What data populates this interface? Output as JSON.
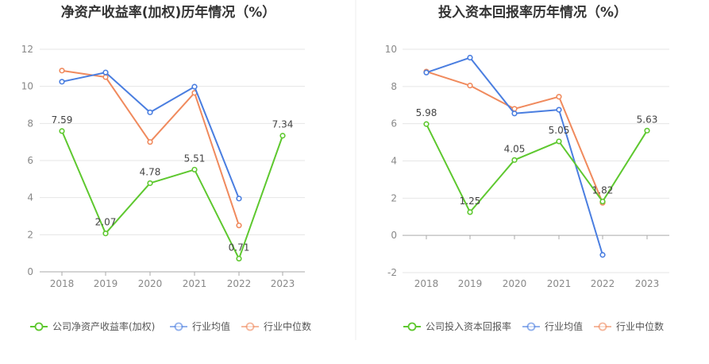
{
  "chart_data": [
    {
      "type": "line",
      "title": "净资产收益率(加权)历年情况（%）",
      "categories": [
        "2018",
        "2019",
        "2020",
        "2021",
        "2022",
        "2023"
      ],
      "ylim": [
        0,
        12
      ],
      "yticks": [
        0,
        2,
        4,
        6,
        8,
        10,
        12
      ],
      "grid": true,
      "legend_position": "bottom",
      "series": [
        {
          "name": "公司净资产收益率(加权)",
          "color": "#5ec82f",
          "values": [
            7.59,
            2.07,
            4.78,
            5.51,
            0.71,
            7.34
          ],
          "labels": [
            "7.59",
            "2.07",
            "4.78",
            "5.51",
            "0.71",
            "7.34"
          ]
        },
        {
          "name": "行业均值",
          "color": "#4a7ee0",
          "values": [
            10.25,
            10.75,
            8.6,
            9.98,
            3.95,
            null
          ]
        },
        {
          "name": "行业中位数",
          "color": "#f08a5d",
          "values": [
            10.85,
            10.5,
            7.0,
            9.65,
            2.5,
            null
          ]
        }
      ]
    },
    {
      "type": "line",
      "title": "投入资本回报率历年情况（%）",
      "categories": [
        "2018",
        "2019",
        "2020",
        "2021",
        "2022",
        "2023"
      ],
      "ylim": [
        -2,
        10
      ],
      "yticks": [
        -2,
        0,
        2,
        4,
        6,
        8,
        10
      ],
      "grid": true,
      "legend_position": "bottom",
      "series": [
        {
          "name": "公司投入资本回报率",
          "color": "#5ec82f",
          "values": [
            5.98,
            1.25,
            4.05,
            5.05,
            1.82,
            5.63
          ],
          "labels": [
            "5.98",
            "1.25",
            "4.05",
            "5.05",
            "1.82",
            "5.63"
          ]
        },
        {
          "name": "行业均值",
          "color": "#4a7ee0",
          "values": [
            8.75,
            9.55,
            6.55,
            6.75,
            -1.05,
            null
          ]
        },
        {
          "name": "行业中位数",
          "color": "#f08a5d",
          "values": [
            8.8,
            8.05,
            6.8,
            7.45,
            1.75,
            null
          ]
        }
      ]
    }
  ]
}
